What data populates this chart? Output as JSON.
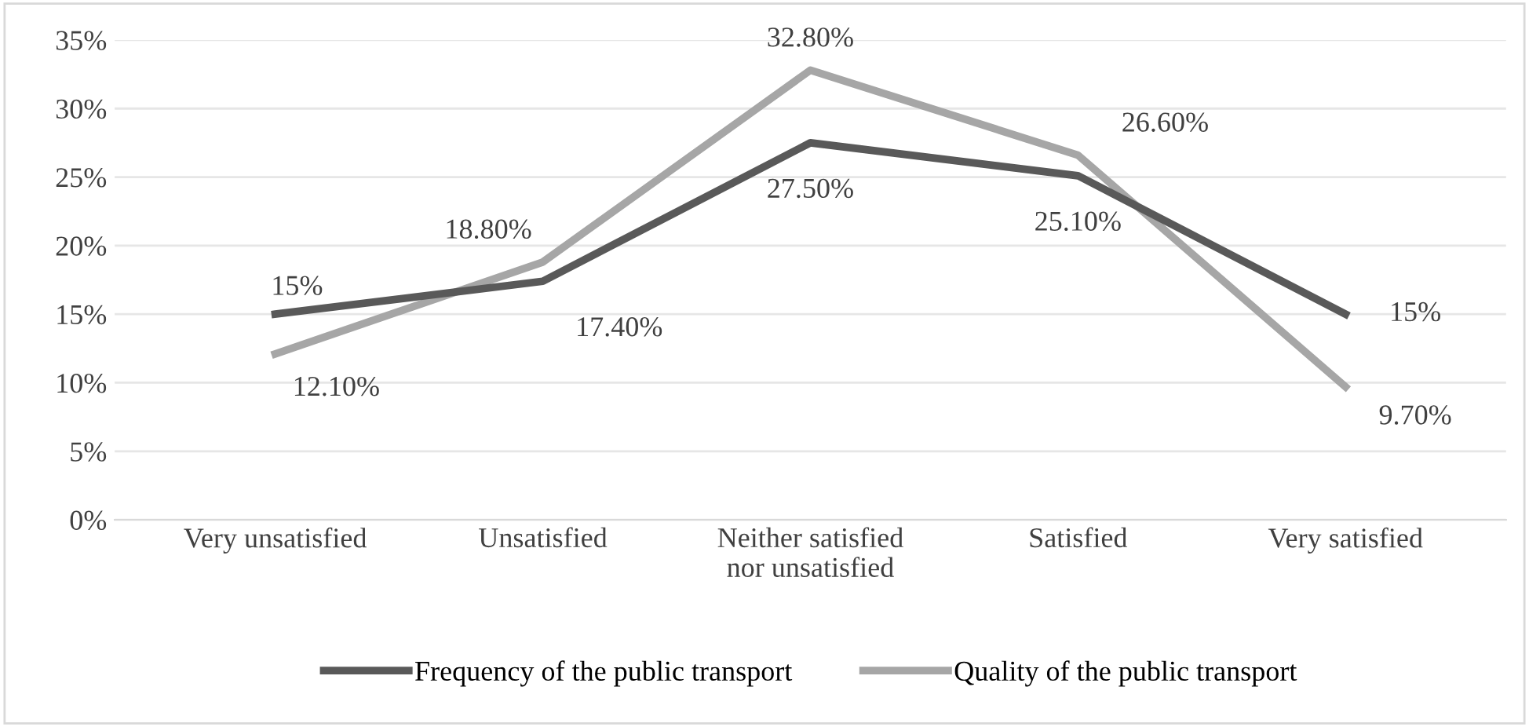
{
  "chart_data": {
    "type": "line",
    "categories": [
      "Very unsatisfied",
      "Unsatisfied",
      "Neither satisfied\nnor unsatisfied",
      "Satisfied",
      "Very satisfied"
    ],
    "series": [
      {
        "name": "Frequency of the public transport",
        "color": "#595959",
        "values": [
          15,
          17.4,
          27.5,
          25.1,
          15
        ],
        "value_labels": [
          "15%",
          "17.40%",
          "27.50%",
          "25.10%",
          "15%"
        ]
      },
      {
        "name": "Quality of the public transport",
        "color": "#a6a6a6",
        "values": [
          12.1,
          18.8,
          32.8,
          26.6,
          9.7
        ],
        "value_labels": [
          "12.10%",
          "18.80%",
          "32.80%",
          "26.60%",
          "9.70%"
        ]
      }
    ],
    "ylim": [
      0,
      35
    ],
    "yticks": [
      {
        "value": 0,
        "label": "0%"
      },
      {
        "value": 5,
        "label": "5%"
      },
      {
        "value": 10,
        "label": "10%"
      },
      {
        "value": 15,
        "label": "15%"
      },
      {
        "value": 20,
        "label": "20%"
      },
      {
        "value": 25,
        "label": "25%"
      },
      {
        "value": 30,
        "label": "30%"
      },
      {
        "value": 35,
        "label": "35%"
      }
    ],
    "grid": "y",
    "legend": "bottom",
    "marker": "none",
    "line_style": "solid"
  }
}
